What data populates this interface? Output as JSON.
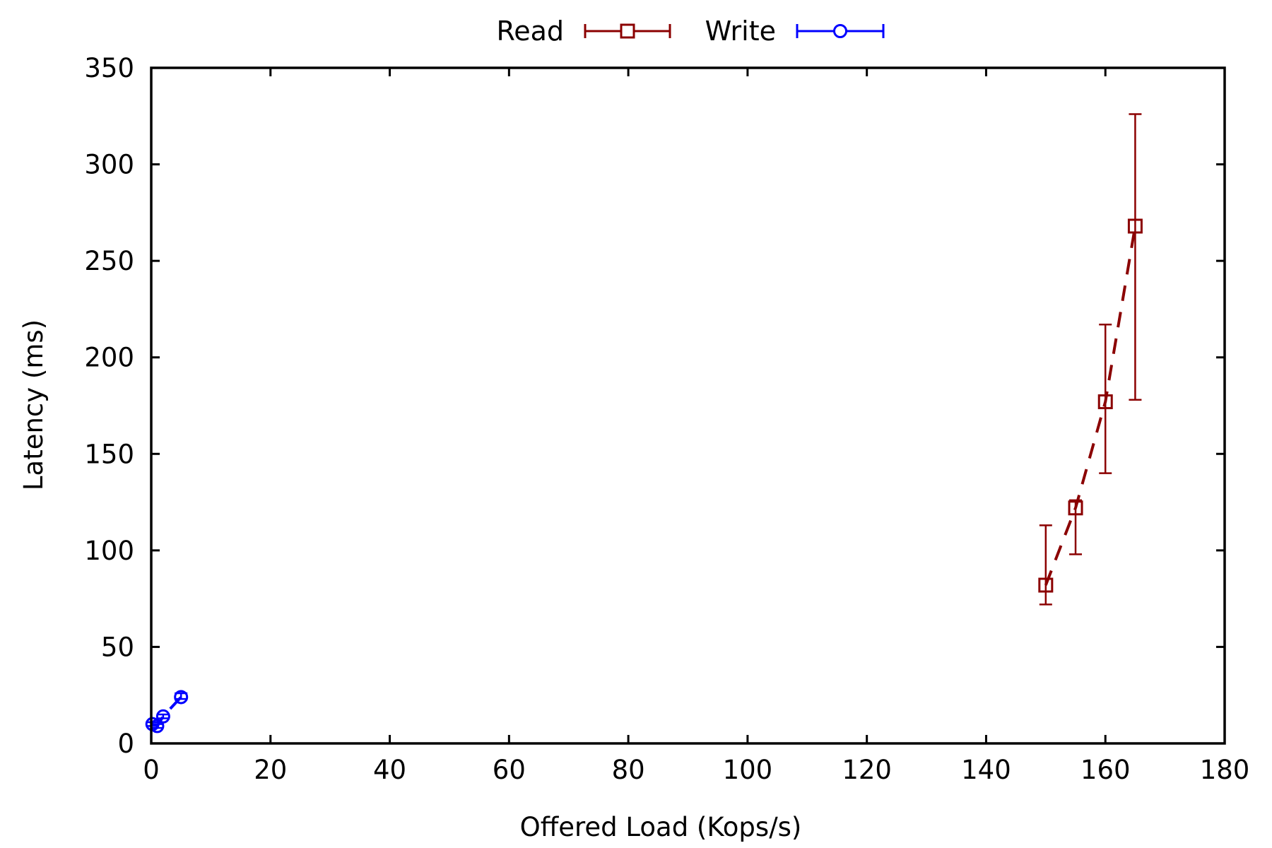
{
  "chart_data": {
    "type": "scatter",
    "title": "",
    "xlabel": "Offered Load (Kops/s)",
    "ylabel": "Latency (ms)",
    "xlim": [
      0,
      180
    ],
    "ylim": [
      0,
      350
    ],
    "xticks": [
      0,
      20,
      40,
      60,
      80,
      100,
      120,
      140,
      160,
      180
    ],
    "yticks": [
      0,
      50,
      100,
      150,
      200,
      250,
      300,
      350
    ],
    "grid": false,
    "legend_position": "top-center",
    "series": [
      {
        "name": "Read",
        "color": "#8b0000",
        "marker": "square",
        "line": "dashed",
        "points": [
          {
            "x": 150,
            "y": 82,
            "y_low": 72,
            "y_high": 113
          },
          {
            "x": 155,
            "y": 122,
            "y_low": 98,
            "y_high": 126
          },
          {
            "x": 160,
            "y": 177,
            "y_low": 140,
            "y_high": 217
          },
          {
            "x": 165,
            "y": 268,
            "y_low": 178,
            "y_high": 326
          }
        ]
      },
      {
        "name": "Write",
        "color": "#0000ff",
        "marker": "circle",
        "line": "dashed",
        "points": [
          {
            "x": 0.2,
            "y": 10,
            "y_low": 9,
            "y_high": 11
          },
          {
            "x": 1,
            "y": 9,
            "y_low": 8,
            "y_high": 10
          },
          {
            "x": 2,
            "y": 14,
            "y_low": 13,
            "y_high": 15
          },
          {
            "x": 5,
            "y": 24,
            "y_low": 23,
            "y_high": 26
          }
        ]
      }
    ]
  }
}
